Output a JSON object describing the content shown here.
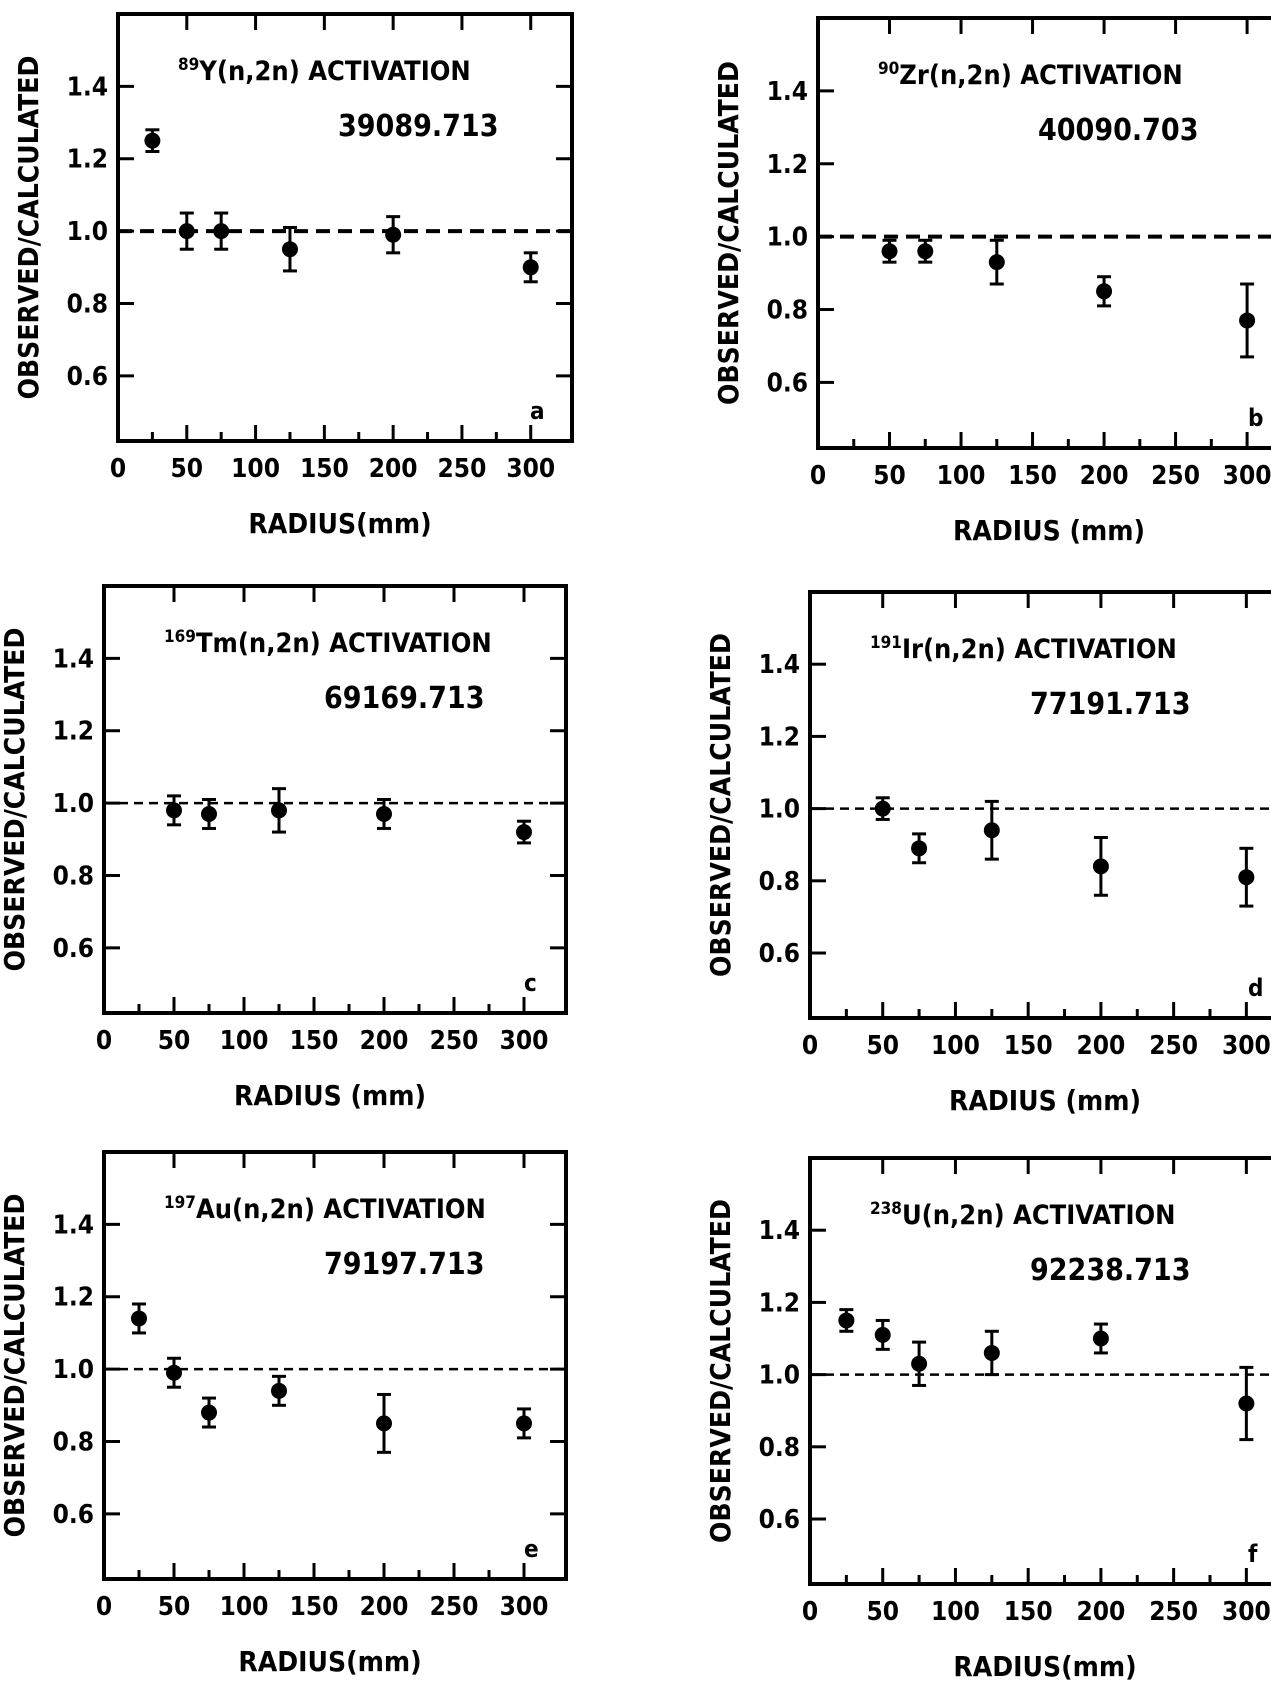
{
  "figure": {
    "y_axis_label": "OBSERVED/CALCULATED",
    "x_axis_label": "RADIUS(mm)"
  },
  "chart_data": [
    {
      "type": "scatter",
      "panel": "a",
      "title_sup": "89",
      "title_rest": "Y(n,2n) ACTIVATION",
      "code": "39089.713",
      "xlabel": "RADIUS(mm)",
      "ylabel": "OBSERVED/CALCULATED",
      "xlim": [
        0,
        330
      ],
      "ylim": [
        0.42,
        1.6
      ],
      "x_ticks": [
        0,
        50,
        100,
        150,
        200,
        250,
        300
      ],
      "y_ticks": [
        0.6,
        0.8,
        1.0,
        1.2,
        1.4
      ],
      "reference_line": 1.0,
      "points": [
        {
          "x": 25,
          "y": 1.25,
          "err": 0.03
        },
        {
          "x": 50,
          "y": 1.0,
          "err": 0.05
        },
        {
          "x": 75,
          "y": 1.0,
          "err": 0.05
        },
        {
          "x": 125,
          "y": 0.95,
          "err": 0.06
        },
        {
          "x": 200,
          "y": 0.99,
          "err": 0.05
        },
        {
          "x": 300,
          "y": 0.9,
          "err": 0.04
        }
      ]
    },
    {
      "type": "scatter",
      "panel": "b",
      "title_sup": "90",
      "title_rest": "Zr(n,2n) ACTIVATION",
      "code": "40090.703",
      "xlabel": "RADIUS (mm)",
      "ylabel": "OBSERVED/CALCULATED",
      "xlim": [
        0,
        330
      ],
      "ylim": [
        0.42,
        1.6
      ],
      "x_ticks": [
        0,
        50,
        100,
        150,
        200,
        250,
        300
      ],
      "y_ticks": [
        0.6,
        0.8,
        1.0,
        1.2,
        1.4
      ],
      "reference_line": 1.0,
      "points": [
        {
          "x": 50,
          "y": 0.96,
          "err": 0.03
        },
        {
          "x": 75,
          "y": 0.96,
          "err": 0.03
        },
        {
          "x": 125,
          "y": 0.93,
          "err": 0.06
        },
        {
          "x": 200,
          "y": 0.85,
          "err": 0.04
        },
        {
          "x": 300,
          "y": 0.77,
          "err": 0.1
        }
      ]
    },
    {
      "type": "scatter",
      "panel": "c",
      "title_sup": "169",
      "title_rest": "Tm(n,2n) ACTIVATION",
      "code": "69169.713",
      "xlabel": "RADIUS (mm)",
      "ylabel": "OBSERVED/CALCULATED",
      "xlim": [
        0,
        330
      ],
      "ylim": [
        0.42,
        1.6
      ],
      "x_ticks": [
        0,
        50,
        100,
        150,
        200,
        250,
        300
      ],
      "y_ticks": [
        0.6,
        0.8,
        1.0,
        1.2,
        1.4
      ],
      "reference_line": 1.0,
      "points": [
        {
          "x": 50,
          "y": 0.98,
          "err": 0.04
        },
        {
          "x": 75,
          "y": 0.97,
          "err": 0.04
        },
        {
          "x": 125,
          "y": 0.98,
          "err": 0.06
        },
        {
          "x": 200,
          "y": 0.97,
          "err": 0.04
        },
        {
          "x": 300,
          "y": 0.92,
          "err": 0.03
        }
      ]
    },
    {
      "type": "scatter",
      "panel": "d",
      "title_sup": "191",
      "title_rest": "Ir(n,2n) ACTIVATION",
      "code": "77191.713",
      "xlabel": "RADIUS (mm)",
      "ylabel": "OBSERVED/CALCULATED",
      "xlim": [
        0,
        330
      ],
      "ylim": [
        0.42,
        1.6
      ],
      "x_ticks": [
        0,
        50,
        100,
        150,
        200,
        250,
        300
      ],
      "y_ticks": [
        0.6,
        0.8,
        1.0,
        1.2,
        1.4
      ],
      "reference_line": 1.0,
      "points": [
        {
          "x": 50,
          "y": 1.0,
          "err": 0.03
        },
        {
          "x": 75,
          "y": 0.89,
          "err": 0.04
        },
        {
          "x": 125,
          "y": 0.94,
          "err": 0.08
        },
        {
          "x": 200,
          "y": 0.84,
          "err": 0.08
        },
        {
          "x": 300,
          "y": 0.81,
          "err": 0.08
        }
      ]
    },
    {
      "type": "scatter",
      "panel": "e",
      "title_sup": "197",
      "title_rest": "Au(n,2n) ACTIVATION",
      "code": "79197.713",
      "xlabel": "RADIUS(mm)",
      "ylabel": "OBSERVED/CALCULATED",
      "xlim": [
        0,
        330
      ],
      "ylim": [
        0.42,
        1.6
      ],
      "x_ticks": [
        0,
        50,
        100,
        150,
        200,
        250,
        300
      ],
      "y_ticks": [
        0.6,
        0.8,
        1.0,
        1.2,
        1.4
      ],
      "reference_line": 1.0,
      "points": [
        {
          "x": 25,
          "y": 1.14,
          "err": 0.04
        },
        {
          "x": 50,
          "y": 0.99,
          "err": 0.04
        },
        {
          "x": 75,
          "y": 0.88,
          "err": 0.04
        },
        {
          "x": 125,
          "y": 0.94,
          "err": 0.04
        },
        {
          "x": 200,
          "y": 0.85,
          "err": 0.08
        },
        {
          "x": 300,
          "y": 0.85,
          "err": 0.04
        }
      ]
    },
    {
      "type": "scatter",
      "panel": "f",
      "title_sup": "238",
      "title_rest": "U(n,2n) ACTIVATION",
      "code": "92238.713",
      "xlabel": "RADIUS(mm)",
      "ylabel": "OBSERVED/CALCULATED",
      "xlim": [
        0,
        330
      ],
      "ylim": [
        0.42,
        1.6
      ],
      "x_ticks": [
        0,
        50,
        100,
        150,
        200,
        250,
        300
      ],
      "y_ticks": [
        0.6,
        0.8,
        1.0,
        1.2,
        1.4
      ],
      "reference_line": 1.0,
      "points": [
        {
          "x": 25,
          "y": 1.15,
          "err": 0.03
        },
        {
          "x": 50,
          "y": 1.11,
          "err": 0.04
        },
        {
          "x": 75,
          "y": 1.03,
          "err": 0.06
        },
        {
          "x": 125,
          "y": 1.06,
          "err": 0.06
        },
        {
          "x": 200,
          "y": 1.1,
          "err": 0.04
        },
        {
          "x": 300,
          "y": 0.92,
          "err": 0.1
        }
      ]
    }
  ]
}
